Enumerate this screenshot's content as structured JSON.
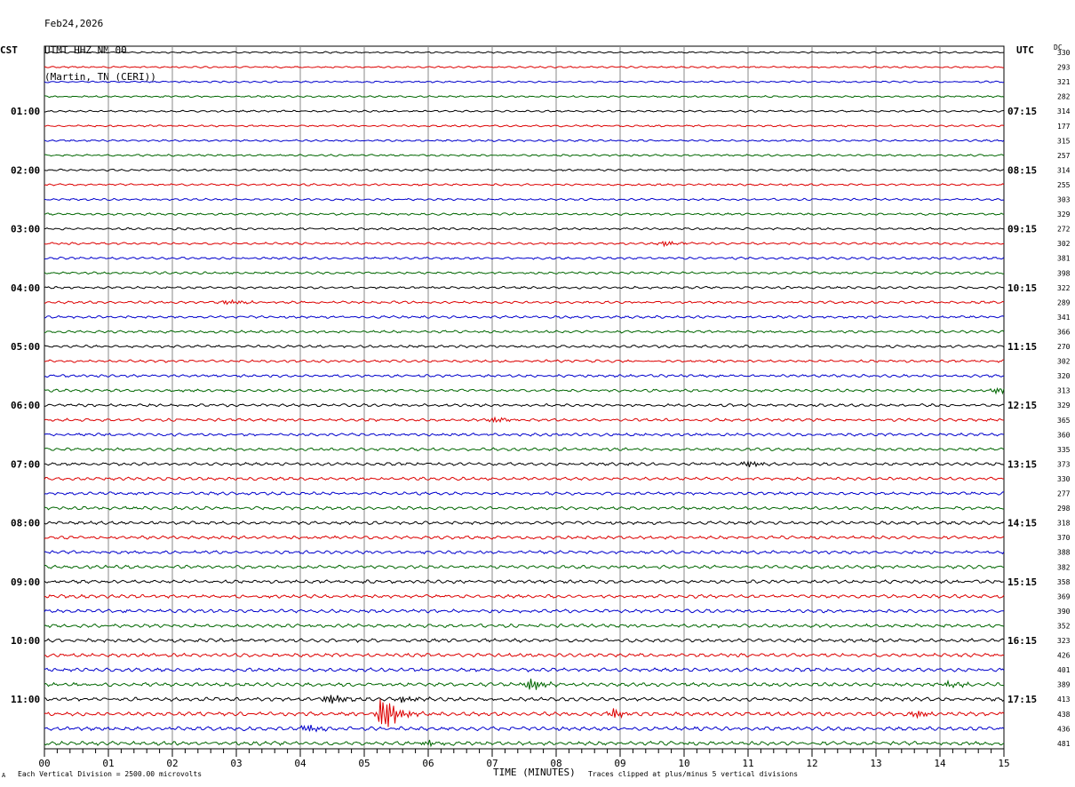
{
  "header": {
    "date": "Feb24,2026",
    "station": "UTMT HHZ NM 00",
    "location": "(Martin, TN (CERI))"
  },
  "left_timezone": "CST",
  "right_timezone": "UTC",
  "dc_label": "DC",
  "footer": {
    "scale_note": "Each Vertical Division = 2500.00 microvolts",
    "xlabel": "TIME (MINUTES)",
    "clip_note": "Traces clipped at plus/minus 5 vertical divisions",
    "corner_mark": "A"
  },
  "chart_data": {
    "type": "line",
    "xlabel": "TIME (MINUTES)",
    "xlim": [
      0,
      15
    ],
    "x_ticks": [
      "00",
      "01",
      "02",
      "03",
      "04",
      "05",
      "06",
      "07",
      "08",
      "09",
      "10",
      "11",
      "12",
      "13",
      "14",
      "15"
    ],
    "trace_colors": [
      "#000000",
      "#dd0000",
      "#0000cc",
      "#006600"
    ],
    "left_hour_labels": [
      "01:00",
      "02:00",
      "03:00",
      "04:00",
      "05:00",
      "06:00",
      "07:00",
      "08:00",
      "09:00",
      "10:00",
      "11:00"
    ],
    "right_hour_labels": [
      "07:15",
      "08:15",
      "09:15",
      "10:15",
      "11:15",
      "12:15",
      "13:15",
      "14:15",
      "15:15",
      "16:15",
      "17:15"
    ],
    "dc_offsets": [
      330,
      293,
      321,
      282,
      314,
      177,
      315,
      257,
      314,
      255,
      303,
      329,
      272,
      302,
      381,
      398,
      322,
      289,
      341,
      366,
      270,
      302,
      320,
      313,
      329,
      365,
      360,
      335,
      373,
      330,
      277,
      298,
      318,
      370,
      388,
      382,
      358,
      369,
      390,
      352,
      323,
      426,
      401,
      389,
      413,
      438,
      436,
      481
    ],
    "events": [
      {
        "trace": 17,
        "minute": 2.85,
        "amp": 0.6
      },
      {
        "trace": 13,
        "minute": 9.7,
        "amp": 0.5
      },
      {
        "trace": 23,
        "minute": 14.9,
        "amp": 0.7
      },
      {
        "trace": 25,
        "minute": 7.05,
        "amp": 0.7
      },
      {
        "trace": 28,
        "minute": 11.0,
        "amp": 0.8
      },
      {
        "trace": 43,
        "minute": 7.6,
        "amp": 1.6
      },
      {
        "trace": 43,
        "minute": 14.15,
        "amp": 0.7
      },
      {
        "trace": 44,
        "minute": 4.45,
        "amp": 1.2
      },
      {
        "trace": 44,
        "minute": 5.6,
        "amp": 0.8
      },
      {
        "trace": 45,
        "minute": 5.3,
        "amp": 4.5
      },
      {
        "trace": 45,
        "minute": 8.9,
        "amp": 1.1
      },
      {
        "trace": 45,
        "minute": 13.6,
        "amp": 0.9
      },
      {
        "trace": 46,
        "minute": 4.1,
        "amp": 0.8
      },
      {
        "trace": 47,
        "minute": 6.0,
        "amp": 0.6
      }
    ]
  }
}
